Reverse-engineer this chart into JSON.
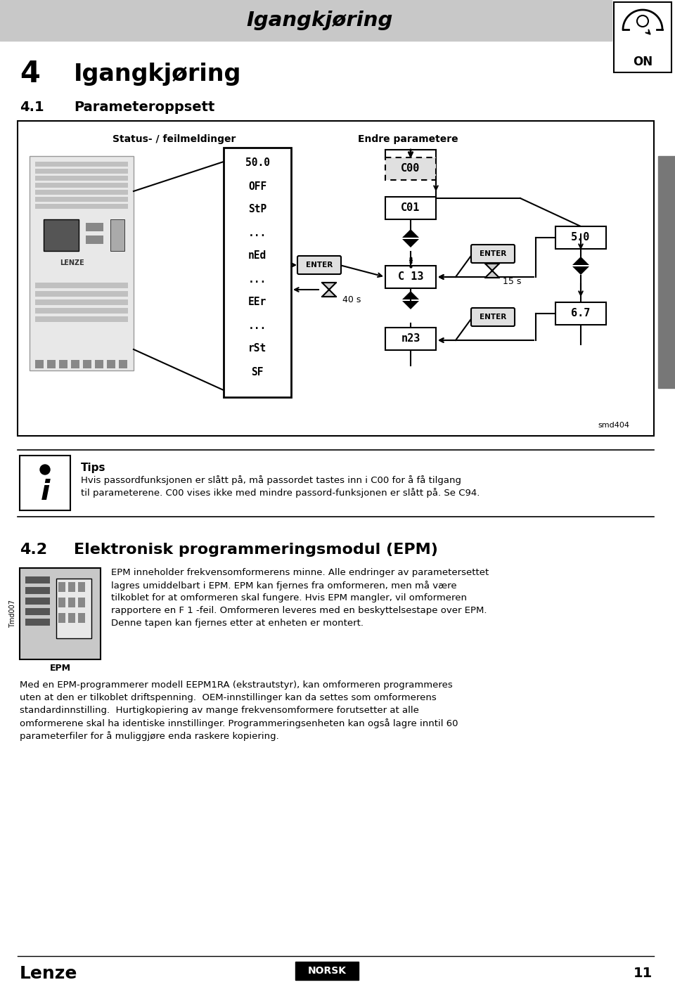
{
  "page_bg": "#ffffff",
  "header_bg": "#c8c8c8",
  "header_text": "Igangkjøring",
  "sidebar_color": "#777777",
  "chapter_num": "4",
  "chapter_title": "Igangkjøring",
  "section_num": "4.1",
  "section_title": "Parameteroppsett",
  "diagram_label_left": "Status- / feilmeldinger",
  "diagram_label_right": "Endre parametere",
  "display_items_left": [
    "50.0",
    "OFF",
    "StP",
    "...",
    "nEd",
    "...",
    "EEr",
    "...",
    "rSt",
    "SF"
  ],
  "timer_40s": "40 s",
  "timer_15s": "15 s",
  "smd_label": "smd404",
  "info_title": "Tips",
  "info_line1": "Hvis passordfunksjonen er slått på, må passordet tastes inn i C00 for å få tilgang",
  "info_line2": "til parameterene. C00 vises ikke med mindre passord-funksjonen er slått på. Se C94.",
  "section2_num": "4.2",
  "section2_title": "Elektronisk programmeringsmodul (EPM)",
  "epm_intro": "EPM inneholder frekvensomformerens minne. Alle endringer av parametersettet",
  "epm_line2": "lagres umiddelbart i EPM. EPM kan fjernes fra omformeren, men må være",
  "epm_line3": "tilkoblet for at omformeren skal fungere. Hvis EPM mangler, vil omformeren",
  "epm_line4": "rapportere en F 1 -feil. Omformeren leveres med en beskyttelsestape over EPM.",
  "epm_line5": "Denne tapen kan fjernes etter at enheten er montert.",
  "epm_p2_line1": "Med en EPM-programmerer modell EEPM1RA (ekstrautstyr), kan omformeren programmeres",
  "epm_p2_line2": "uten at den er tilkoblet driftspenning.  OEM-innstillinger kan da settes som omformerens",
  "epm_p2_line3": "standardinnstilling.  Hurtigkopiering av mange frekvensomformere forutsetter at alle",
  "epm_p2_line4": "omformerene skal ha identiske innstillinger. Programmeringsenheten kan også lagre inntil 60",
  "epm_p2_line5": "parameterfiler for å muliggjøre enda raskere kopiering.",
  "footer_logo": "Lenze",
  "footer_lang": "NORSK",
  "footer_page": "11"
}
